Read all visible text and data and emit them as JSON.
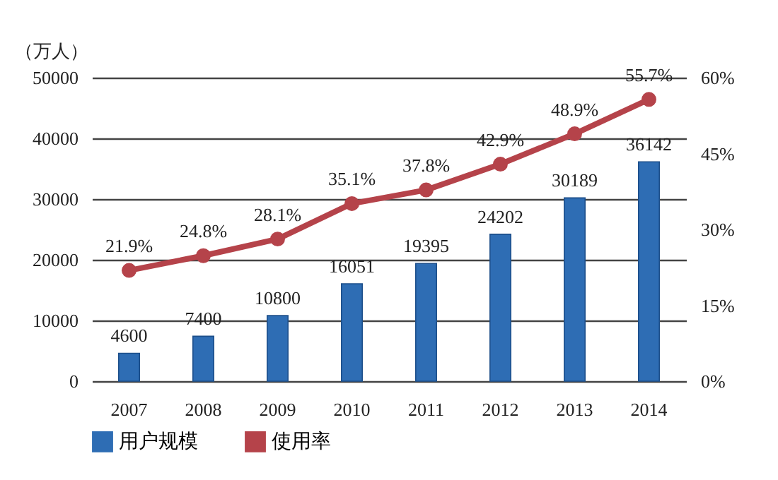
{
  "chart_data": {
    "type": "bar",
    "ylabel": "（万人）",
    "categories": [
      "2007",
      "2008",
      "2009",
      "2010",
      "2011",
      "2012",
      "2013",
      "2014"
    ],
    "series": [
      {
        "name": "用户规模",
        "color": "#2e6db4",
        "values": [
          4600,
          7400,
          10800,
          16051,
          19395,
          24202,
          30189,
          36142
        ],
        "value_labels": [
          "4600",
          "7400",
          "10800",
          "16051",
          "19395",
          "24202",
          "30189",
          "36142"
        ]
      },
      {
        "name": "使用率",
        "type": "line",
        "axis": "y2",
        "color": "#b5434a",
        "marker": "circle",
        "values": [
          21.9,
          24.8,
          28.1,
          35.1,
          37.8,
          42.9,
          48.9,
          55.7
        ],
        "value_labels": [
          "21.9%",
          "24.8%",
          "28.1%",
          "35.1%",
          "37.8%",
          "42.9%",
          "48.9%",
          "55.7%"
        ]
      }
    ],
    "ylim": [
      0,
      50000
    ],
    "yticks": [
      0,
      10000,
      20000,
      30000,
      40000,
      50000
    ],
    "y2lim": [
      0,
      60
    ],
    "y2ticks": [
      {
        "value": 0,
        "label": "0%"
      },
      {
        "value": 15,
        "label": "15%"
      },
      {
        "value": 30,
        "label": "30%"
      },
      {
        "value": 45,
        "label": "45%"
      },
      {
        "value": 60,
        "label": "60%"
      }
    ],
    "grid": "y",
    "legend": "bottom"
  }
}
